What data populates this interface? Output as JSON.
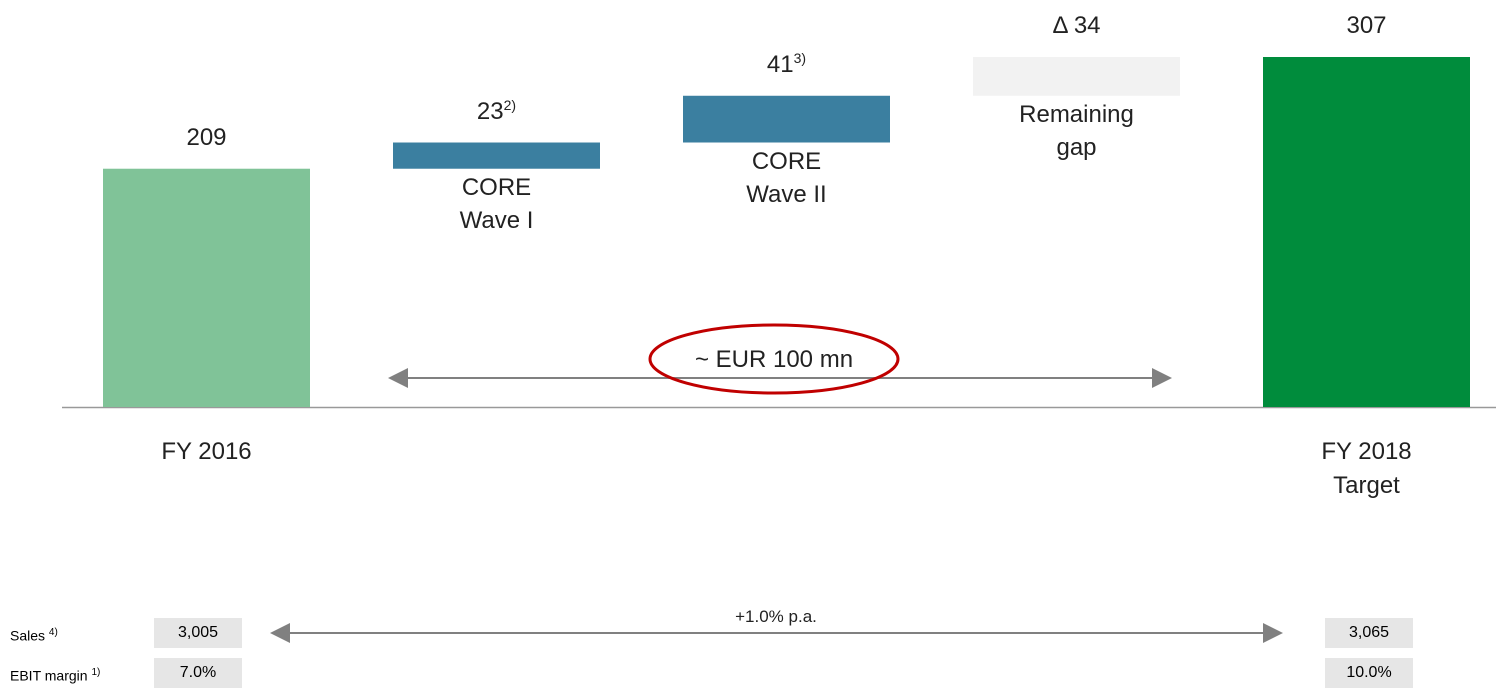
{
  "chart_data": {
    "type": "waterfall",
    "categories": [
      "FY 2016",
      "CORE\nWave I",
      "CORE\nWave II",
      "Remaining\ngap",
      "FY 2018\nTarget"
    ],
    "values": [
      209,
      23,
      41,
      34,
      307
    ],
    "value_labels": [
      "209",
      "23",
      "41",
      "Δ 34",
      "307"
    ],
    "footnotes": [
      null,
      "2)",
      "3)",
      null,
      null
    ],
    "kinds": [
      "total",
      "step",
      "step",
      "step",
      "total"
    ],
    "colors": [
      "#80c398",
      "#3b7fa0",
      "#3b7fa0",
      "#f2f2f2",
      "#008c3c"
    ],
    "annotation": "~ EUR 100 mn"
  },
  "table": {
    "rows": [
      {
        "label": "Sales",
        "note": "4)",
        "values": [
          "3,005",
          "3,065"
        ]
      },
      {
        "label": "EBIT margin",
        "note": "1)",
        "values": [
          "7.0%",
          "10.0%"
        ]
      }
    ],
    "growth": "+1.0% p.a."
  }
}
